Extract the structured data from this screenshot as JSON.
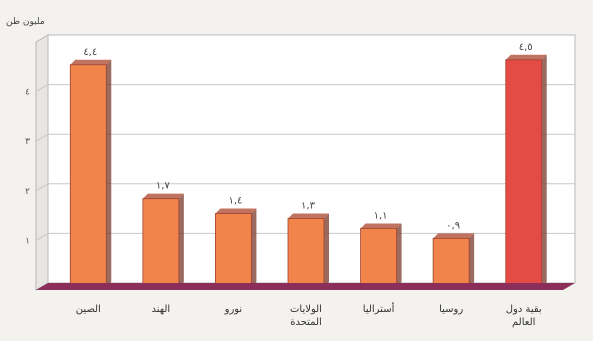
{
  "chart_data": {
    "type": "bar",
    "unit": "مليون طن",
    "categories": [
      "الصين",
      "الهند",
      "نورو",
      "الولايات المتحدة",
      "أستراليا",
      "روسيا",
      "بقية دول العالم"
    ],
    "values": [
      4.4,
      1.7,
      1.4,
      1.3,
      1.1,
      0.9,
      4.5
    ],
    "value_labels": [
      "٤,٤",
      "١,٧",
      "١,٤",
      "١,٣",
      "١,١",
      "٠,٩",
      "٤,٥"
    ],
    "highlight_index": 6,
    "colors": {
      "bar": "#f0844a",
      "highlight": "#e54b45",
      "floor": "#8b2e5a"
    },
    "ylim": [
      0,
      5
    ],
    "yticks": [
      1,
      2,
      3,
      4
    ],
    "ytick_labels": [
      "١",
      "٢",
      "٣",
      "٤"
    ],
    "grid": true
  }
}
